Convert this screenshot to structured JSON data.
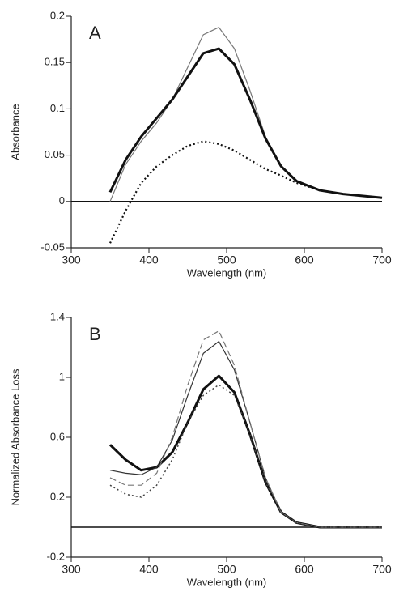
{
  "chart_data": [
    {
      "type": "line",
      "panel_label": "A",
      "xlabel": "Wavelength (nm)",
      "ylabel": "Absorbance",
      "xlim": [
        300,
        700
      ],
      "xticks": [
        300,
        400,
        500,
        600,
        700
      ],
      "ylim": [
        -0.05,
        0.2
      ],
      "yticks": [
        -0.05,
        0,
        0.05,
        0.1,
        0.15,
        0.2
      ],
      "x": [
        350,
        370,
        390,
        410,
        430,
        450,
        470,
        490,
        510,
        530,
        550,
        570,
        590,
        620,
        650,
        700
      ],
      "series": [
        {
          "color": "#777777",
          "style": "solid",
          "width": 1.2,
          "values": [
            0.0,
            0.04,
            0.065,
            0.085,
            0.11,
            0.145,
            0.18,
            0.188,
            0.165,
            0.12,
            0.07,
            0.038,
            0.022,
            0.012,
            0.008,
            0.004
          ]
        },
        {
          "color": "#111111",
          "style": "solid",
          "width": 3,
          "values": [
            0.01,
            0.045,
            0.07,
            0.09,
            0.11,
            0.135,
            0.16,
            0.165,
            0.148,
            0.11,
            0.068,
            0.038,
            0.022,
            0.012,
            0.008,
            0.004
          ]
        },
        {
          "color": "#111111",
          "style": "dotted",
          "width": 2.2,
          "values": [
            -0.045,
            -0.01,
            0.02,
            0.038,
            0.05,
            0.06,
            0.065,
            0.062,
            0.055,
            0.045,
            0.035,
            0.028,
            0.02,
            0.012,
            0.008,
            0.004
          ]
        }
      ]
    },
    {
      "type": "line",
      "panel_label": "B",
      "xlabel": "Wavelength (nm)",
      "ylabel": "Normalized Absorbance Loss",
      "xlim": [
        300,
        700
      ],
      "xticks": [
        300,
        400,
        500,
        600,
        700
      ],
      "ylim": [
        -0.2,
        1.4
      ],
      "yticks": [
        -0.2,
        0.2,
        0.6,
        1,
        1.4
      ],
      "x": [
        350,
        370,
        390,
        410,
        430,
        450,
        470,
        490,
        510,
        530,
        550,
        570,
        590,
        620,
        650,
        700
      ],
      "series": [
        {
          "color": "#111111",
          "style": "solid",
          "width": 3,
          "values": [
            0.55,
            0.45,
            0.38,
            0.4,
            0.5,
            0.7,
            0.92,
            1.01,
            0.9,
            0.62,
            0.3,
            0.1,
            0.03,
            0.0,
            0.0,
            0.0
          ]
        },
        {
          "color": "#333333",
          "style": "solid",
          "width": 1.2,
          "values": [
            0.38,
            0.36,
            0.35,
            0.4,
            0.58,
            0.88,
            1.16,
            1.24,
            1.05,
            0.7,
            0.33,
            0.1,
            0.03,
            0.0,
            0.0,
            0.0
          ]
        },
        {
          "color": "#777777",
          "style": "dashed",
          "width": 1.2,
          "values": [
            0.33,
            0.28,
            0.28,
            0.36,
            0.6,
            0.95,
            1.25,
            1.31,
            1.08,
            0.7,
            0.33,
            0.1,
            0.03,
            0.0,
            0.0,
            0.0
          ]
        },
        {
          "color": "#444444",
          "style": "dotted",
          "width": 1.5,
          "values": [
            0.28,
            0.22,
            0.2,
            0.28,
            0.45,
            0.7,
            0.88,
            0.95,
            0.88,
            0.62,
            0.3,
            0.1,
            0.03,
            0.0,
            0.0,
            0.0
          ]
        }
      ]
    }
  ]
}
